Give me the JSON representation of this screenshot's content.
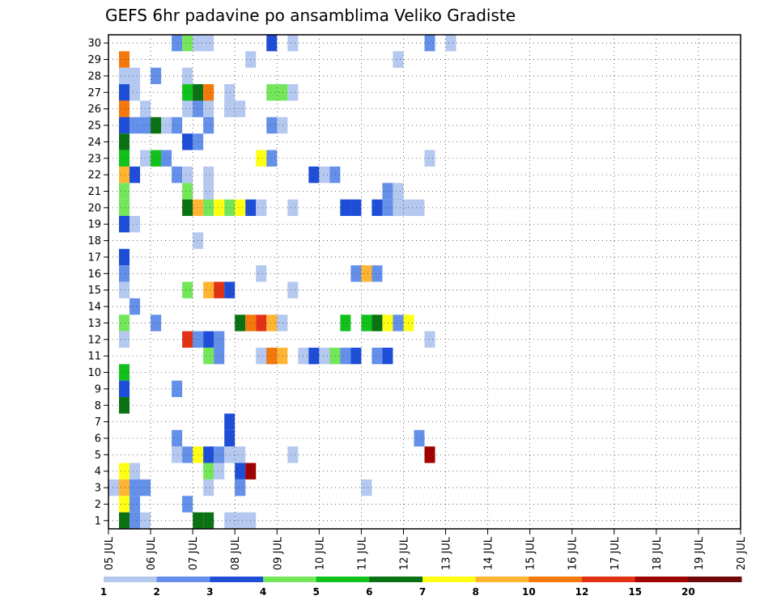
{
  "chart_data": {
    "type": "heatmap",
    "title": "GEFS 6hr padavine po ansamblima Veliko Gradiste",
    "xlabel": "",
    "ylabel": "",
    "x_tick_labels": [
      "05 JUL",
      "06 JUL",
      "07 JUL",
      "08 JUL",
      "09 JUL",
      "10 JUL",
      "11 JUL",
      "12 JUL",
      "13 JUL",
      "14 JUL",
      "15 JUL",
      "16 JUL",
      "17 JUL",
      "18 JUL",
      "19 JUL",
      "20 JUL"
    ],
    "y_tick_labels": [
      "1",
      "2",
      "3",
      "4",
      "5",
      "6",
      "7",
      "8",
      "9",
      "10",
      "11",
      "12",
      "13",
      "14",
      "15",
      "16",
      "17",
      "18",
      "19",
      "20",
      "21",
      "22",
      "23",
      "24",
      "25",
      "26",
      "27",
      "28",
      "29",
      "30"
    ],
    "time_steps_per_day": 4,
    "members": 30,
    "grid": true,
    "colorbar": {
      "position": "bottom",
      "labels": [
        "1",
        "2",
        "3",
        "4",
        "5",
        "6",
        "7",
        "8",
        "10",
        "12",
        "15",
        "20"
      ],
      "colors": [
        "#b4c8f0",
        "#6490ea",
        "#1e4ed8",
        "#73e65a",
        "#12c21c",
        "#0a7212",
        "#ffff14",
        "#ffb432",
        "#f5780a",
        "#e13214",
        "#a00000",
        "#6e0a0a"
      ]
    },
    "cells": [
      {
        "m": 30,
        "c": [
          [
            6,
            2
          ],
          [
            7,
            4
          ],
          [
            8,
            1
          ],
          [
            9,
            1
          ],
          [
            15,
            3
          ],
          [
            17,
            1
          ],
          [
            30,
            2
          ],
          [
            32,
            1
          ]
        ]
      },
      {
        "m": 29,
        "c": [
          [
            1,
            9
          ],
          [
            13,
            1
          ],
          [
            27,
            1
          ]
        ]
      },
      {
        "m": 28,
        "c": [
          [
            1,
            1
          ],
          [
            2,
            1
          ],
          [
            4,
            2
          ],
          [
            7,
            1
          ]
        ]
      },
      {
        "m": 27,
        "c": [
          [
            1,
            3
          ],
          [
            2,
            1
          ],
          [
            7,
            5
          ],
          [
            8,
            6
          ],
          [
            9,
            9
          ],
          [
            11,
            1
          ],
          [
            15,
            4
          ],
          [
            16,
            4
          ],
          [
            17,
            1
          ]
        ]
      },
      {
        "m": 26,
        "c": [
          [
            1,
            9
          ],
          [
            3,
            1
          ],
          [
            7,
            1
          ],
          [
            8,
            2
          ],
          [
            9,
            1
          ],
          [
            11,
            1
          ],
          [
            11,
            1
          ],
          [
            12,
            1
          ]
        ]
      },
      {
        "m": 25,
        "c": [
          [
            1,
            3
          ],
          [
            2,
            2
          ],
          [
            3,
            2
          ],
          [
            4,
            6
          ],
          [
            5,
            1
          ],
          [
            6,
            2
          ],
          [
            9,
            2
          ],
          [
            15,
            2
          ],
          [
            16,
            1
          ]
        ]
      },
      {
        "m": 24,
        "c": [
          [
            1,
            6
          ],
          [
            7,
            3
          ],
          [
            8,
            2
          ]
        ]
      },
      {
        "m": 23,
        "c": [
          [
            1,
            5
          ],
          [
            3,
            1
          ],
          [
            4,
            5
          ],
          [
            5,
            2
          ],
          [
            14,
            7
          ],
          [
            15,
            2
          ],
          [
            30,
            1
          ]
        ]
      },
      {
        "m": 22,
        "c": [
          [
            1,
            8
          ],
          [
            2,
            3
          ],
          [
            6,
            2
          ],
          [
            7,
            1
          ],
          [
            9,
            1
          ],
          [
            19,
            3
          ],
          [
            20,
            1
          ],
          [
            21,
            2
          ]
        ]
      },
      {
        "m": 21,
        "c": [
          [
            1,
            4
          ],
          [
            7,
            4
          ],
          [
            9,
            1
          ],
          [
            26,
            2
          ],
          [
            27,
            1
          ]
        ]
      },
      {
        "m": 20,
        "c": [
          [
            1,
            4
          ],
          [
            7,
            6
          ],
          [
            8,
            8
          ],
          [
            9,
            4
          ],
          [
            10,
            7
          ],
          [
            11,
            4
          ],
          [
            12,
            7
          ],
          [
            13,
            3
          ],
          [
            14,
            1
          ],
          [
            17,
            1
          ],
          [
            22,
            1
          ],
          [
            22,
            3
          ],
          [
            23,
            3
          ],
          [
            25,
            3
          ],
          [
            26,
            2
          ],
          [
            27,
            3
          ],
          [
            27,
            1
          ],
          [
            28,
            1
          ],
          [
            29,
            1
          ]
        ]
      },
      {
        "m": 19,
        "c": [
          [
            1,
            3
          ],
          [
            2,
            1
          ]
        ]
      },
      {
        "m": 18,
        "c": [
          [
            8,
            1
          ]
        ]
      },
      {
        "m": 17,
        "c": [
          [
            1,
            3
          ]
        ]
      },
      {
        "m": 16,
        "c": [
          [
            1,
            2
          ],
          [
            14,
            1
          ],
          [
            23,
            2
          ],
          [
            24,
            8
          ],
          [
            25,
            2
          ]
        ]
      },
      {
        "m": 15,
        "c": [
          [
            1,
            1
          ],
          [
            7,
            4
          ],
          [
            9,
            8
          ],
          [
            10,
            10
          ],
          [
            11,
            3
          ],
          [
            17,
            1
          ]
        ]
      },
      {
        "m": 14,
        "c": [
          [
            2,
            2
          ]
        ]
      },
      {
        "m": 13,
        "c": [
          [
            1,
            4
          ],
          [
            4,
            2
          ],
          [
            12,
            6
          ],
          [
            13,
            9
          ],
          [
            14,
            10
          ],
          [
            15,
            8
          ],
          [
            16,
            1
          ],
          [
            22,
            5
          ],
          [
            24,
            5
          ],
          [
            25,
            6
          ],
          [
            26,
            7
          ],
          [
            27,
            2
          ],
          [
            28,
            7
          ]
        ]
      },
      {
        "m": 12,
        "c": [
          [
            1,
            1
          ],
          [
            7,
            10
          ],
          [
            8,
            2
          ],
          [
            9,
            3
          ],
          [
            10,
            2
          ],
          [
            10,
            2
          ],
          [
            30,
            1
          ]
        ]
      },
      {
        "m": 11,
        "c": [
          [
            9,
            4
          ],
          [
            10,
            2
          ],
          [
            14,
            1
          ],
          [
            15,
            2
          ],
          [
            15,
            9
          ],
          [
            16,
            8
          ],
          [
            18,
            1
          ],
          [
            19,
            1
          ],
          [
            19,
            3
          ],
          [
            20,
            1
          ],
          [
            21,
            1
          ],
          [
            21,
            4
          ],
          [
            22,
            2
          ],
          [
            23,
            3
          ],
          [
            25,
            2
          ],
          [
            26,
            3
          ]
        ]
      },
      {
        "m": 10,
        "c": [
          [
            1,
            5
          ]
        ]
      },
      {
        "m": 9,
        "c": [
          [
            1,
            3
          ],
          [
            6,
            2
          ]
        ]
      },
      {
        "m": 8,
        "c": [
          [
            1,
            6
          ]
        ]
      },
      {
        "m": 7,
        "c": [
          [
            11,
            3
          ]
        ]
      },
      {
        "m": 6,
        "c": [
          [
            6,
            2
          ],
          [
            11,
            3
          ],
          [
            29,
            2
          ]
        ]
      },
      {
        "m": 5,
        "c": [
          [
            6,
            1
          ],
          [
            7,
            2
          ],
          [
            8,
            7
          ],
          [
            9,
            3
          ],
          [
            10,
            2
          ],
          [
            11,
            1
          ],
          [
            12,
            1
          ],
          [
            17,
            1
          ],
          [
            30,
            11
          ]
        ]
      },
      {
        "m": 4,
        "c": [
          [
            1,
            7
          ],
          [
            2,
            1
          ],
          [
            9,
            4
          ],
          [
            10,
            1
          ],
          [
            12,
            3
          ],
          [
            13,
            11
          ]
        ]
      },
      {
        "m": 3,
        "c": [
          [
            0,
            1
          ],
          [
            1,
            8
          ],
          [
            2,
            2
          ],
          [
            3,
            2
          ],
          [
            9,
            1
          ],
          [
            12,
            1
          ],
          [
            12,
            2
          ],
          [
            24,
            1
          ]
        ]
      },
      {
        "m": 2,
        "c": [
          [
            1,
            7
          ],
          [
            2,
            2
          ],
          [
            7,
            2
          ]
        ]
      },
      {
        "m": 1,
        "c": [
          [
            1,
            6
          ],
          [
            2,
            2
          ],
          [
            3,
            1
          ],
          [
            8,
            6
          ],
          [
            9,
            6
          ],
          [
            11,
            1
          ],
          [
            12,
            1
          ],
          [
            13,
            1
          ]
        ]
      }
    ]
  }
}
